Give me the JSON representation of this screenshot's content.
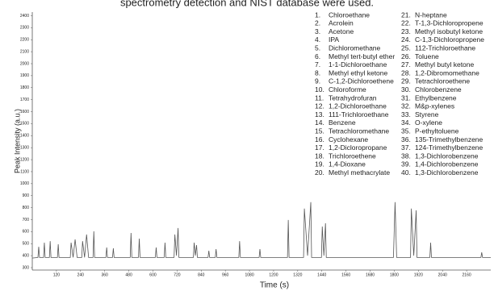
{
  "header": "spectrometry detection and NIST database were used.",
  "chart_data": {
    "type": "line",
    "xlabel": "Time (s)",
    "ylabel": "Peak Intensity (a.u.)",
    "xlim": [
      0,
      2280
    ],
    "ylim": [
      280,
      2430
    ],
    "xticks": [
      120,
      240,
      360,
      480,
      600,
      720,
      840,
      960,
      1080,
      1200,
      1320,
      1440,
      1560,
      1680,
      1800,
      1920,
      2040,
      2160
    ],
    "yticks": [
      300,
      400,
      500,
      600,
      700,
      800,
      900,
      1000,
      1100,
      1200,
      1300,
      1400,
      1500,
      1600,
      1700,
      1800,
      1900,
      2000,
      2100,
      2200,
      2300,
      2400
    ],
    "series": [
      {
        "color": "#555555",
        "x": [
          0,
          28,
          32,
          36,
          56,
          60,
          64,
          85,
          89,
          93,
          125,
          129,
          133,
          189,
          193,
          203,
          213,
          223,
          246,
          250,
          260,
          270,
          280,
          302,
          306,
          310,
          366,
          370,
          374,
          399,
          403,
          407,
          487,
          491,
          495,
          528,
          532,
          536,
          612,
          616,
          620,
          656,
          660,
          664,
          705,
          709,
          717,
          725,
          729,
          801,
          805,
          811,
          817,
          821,
          874,
          878,
          882,
          910,
          914,
          918,
          1027,
          1031,
          1035,
          1128,
          1132,
          1136,
          1269,
          1273,
          1277,
          1349,
          1353,
          1369,
          1385,
          1389,
          1438,
          1442,
          1450,
          1458,
          1462,
          1796,
          1804,
          1812,
          1881,
          1885,
          1897,
          1909,
          1913,
          1977,
          1981,
          1985,
          2231,
          2235,
          2239,
          2280
        ],
        "values": [
          380,
          385,
          474,
          385,
          385,
          508,
          385,
          385,
          521,
          385,
          385,
          495,
          385,
          385,
          508,
          385,
          535,
          385,
          385,
          521,
          385,
          576,
          385,
          385,
          603,
          385,
          385,
          468,
          385,
          385,
          461,
          385,
          385,
          589,
          385,
          385,
          542,
          385,
          385,
          468,
          385,
          385,
          508,
          385,
          385,
          576,
          400,
          630,
          385,
          385,
          508,
          400,
          488,
          385,
          385,
          441,
          385,
          385,
          454,
          385,
          385,
          521,
          385,
          385,
          454,
          385,
          385,
          697,
          385,
          385,
          792,
          400,
          846,
          385,
          385,
          643,
          400,
          670,
          385,
          385,
          846,
          385,
          385,
          792,
          400,
          778,
          385,
          385,
          508,
          385,
          385,
          427,
          385,
          385
        ]
      }
    ],
    "legend": [
      {
        "number": "1.",
        "name": "Chloroethane"
      },
      {
        "number": "2.",
        "name": "Acrolein"
      },
      {
        "number": "3.",
        "name": "Acetone"
      },
      {
        "number": "4.",
        "name": "IPA"
      },
      {
        "number": "5.",
        "name": "Dichloromethane"
      },
      {
        "number": "6.",
        "name": "Methyl tert-butyl ether"
      },
      {
        "number": "7.",
        "name": "1-1-Dichloroethane"
      },
      {
        "number": "8.",
        "name": "Methyl ethyl ketone"
      },
      {
        "number": "9.",
        "name": "C-1,2-Dichloroethene"
      },
      {
        "number": "10.",
        "name": "Chloroforme"
      },
      {
        "number": "11.",
        "name": "Tetrahydrofuran"
      },
      {
        "number": "12.",
        "name": "1,2-Dichloroethane"
      },
      {
        "number": "13.",
        "name": "111-Trichloroethane"
      },
      {
        "number": "14.",
        "name": "Benzene"
      },
      {
        "number": "15.",
        "name": "Tetrachloromethane"
      },
      {
        "number": "16.",
        "name": "Cyclohexane"
      },
      {
        "number": "17.",
        "name": "1,2-Dicloropropane"
      },
      {
        "number": "18.",
        "name": "Trichloroethene"
      },
      {
        "number": "19.",
        "name": "1,4-Dioxane"
      },
      {
        "number": "20.",
        "name": "Methyl methacrylate"
      },
      {
        "number": "21.",
        "name": "N-heptane"
      },
      {
        "number": "22.",
        "name": "T-1,3-Dichloropropene"
      },
      {
        "number": "23.",
        "name": "Methyl isobutyl ketone"
      },
      {
        "number": "24.",
        "name": "C-1,3-Dichloropropene"
      },
      {
        "number": "25.",
        "name": "112-Trichloroethane"
      },
      {
        "number": "26.",
        "name": "Toluene"
      },
      {
        "number": "27.",
        "name": "Methyl butyl ketone"
      },
      {
        "number": "28.",
        "name": "1,2-Dibromomethane"
      },
      {
        "number": "29.",
        "name": "Tetrachloroethene"
      },
      {
        "number": "30.",
        "name": "Chlorobenzene"
      },
      {
        "number": "31.",
        "name": "Ethylbenzene"
      },
      {
        "number": "32.",
        "name": "M&p-xylenes"
      },
      {
        "number": "33.",
        "name": "Styrene"
      },
      {
        "number": "34.",
        "name": "O-xylene"
      },
      {
        "number": "35.",
        "name": "P-ethyltoluene"
      },
      {
        "number": "36.",
        "name": "135-Trimethylbenzene"
      },
      {
        "number": "37.",
        "name": "124-Trimethylbenzene"
      },
      {
        "number": "38.",
        "name": "1,3-Dichlorobenzene"
      },
      {
        "number": "39.",
        "name": "1,4-Dichlorobenzene"
      },
      {
        "number": "40.",
        "name": "1,3-Dichlorobenzene"
      }
    ]
  }
}
